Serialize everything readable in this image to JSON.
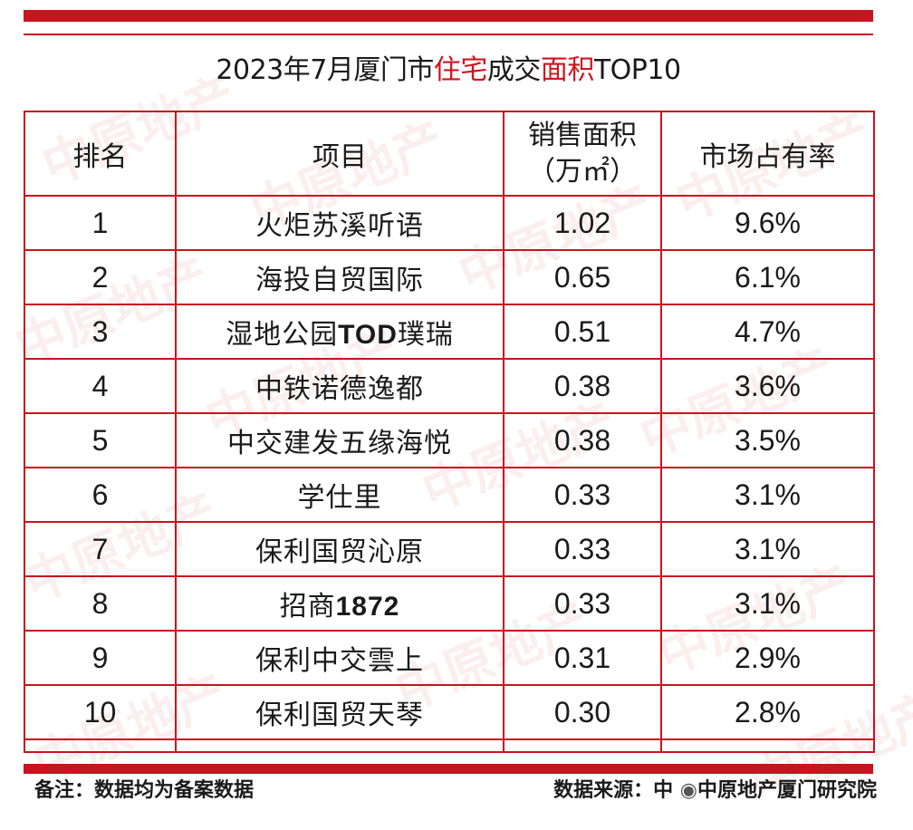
{
  "title": {
    "part1": "2023年7月厦门市",
    "hl1": "住宅",
    "part2": "成交",
    "hl2": "面积",
    "part3": "TOP10"
  },
  "columns": {
    "rank": "排名",
    "project": "项目",
    "area_line1": "销售面积",
    "area_line2": "（万㎡）",
    "share": "市场占有率"
  },
  "rows": [
    {
      "rank": "1",
      "project": "火炬苏溪听语",
      "area": "1.02",
      "share": "9.6%"
    },
    {
      "rank": "2",
      "project": "海投自贸国际",
      "area": "0.65",
      "share": "6.1%"
    },
    {
      "rank": "3",
      "project_a": "湿地公园",
      "project_b": "TOD",
      "project_c": "璞瑞",
      "area": "0.51",
      "share": "4.7%"
    },
    {
      "rank": "4",
      "project": "中铁诺德逸都",
      "area": "0.38",
      "share": "3.6%"
    },
    {
      "rank": "5",
      "project": "中交建发五缘海悦",
      "area": "0.38",
      "share": "3.5%"
    },
    {
      "rank": "6",
      "project": "学仕里",
      "area": "0.33",
      "share": "3.1%"
    },
    {
      "rank": "7",
      "project": "保利国贸沁原",
      "area": "0.33",
      "share": "3.1%"
    },
    {
      "rank": "8",
      "project_a": "招商",
      "project_b": "1872",
      "area": "0.33",
      "share": "3.1%"
    },
    {
      "rank": "9",
      "project": "保利中交雲上",
      "area": "0.31",
      "share": "2.9%"
    },
    {
      "rank": "10",
      "project": "保利国贸天琴",
      "area": "0.30",
      "share": "2.8%"
    }
  ],
  "footer": {
    "note": "备注：数据均为备案数据",
    "source_label": "数据来源：中",
    "source_name": "中原地产厦门研究院"
  },
  "watermark": "中原地产",
  "chart_data": {
    "type": "table",
    "title": "2023年7月厦门市住宅成交面积TOP10",
    "headers": [
      "排名",
      "项目",
      "销售面积（万㎡）",
      "市场占有率"
    ],
    "rows": [
      [
        "1",
        "火炬苏溪听语",
        1.02,
        "9.6%"
      ],
      [
        "2",
        "海投自贸国际",
        0.65,
        "6.1%"
      ],
      [
        "3",
        "湿地公园TOD璞瑞",
        0.51,
        "4.7%"
      ],
      [
        "4",
        "中铁诺德逸都",
        0.38,
        "3.6%"
      ],
      [
        "5",
        "中交建发五缘海悦",
        0.38,
        "3.5%"
      ],
      [
        "6",
        "学仕里",
        0.33,
        "3.1%"
      ],
      [
        "7",
        "保利国贸沁原",
        0.33,
        "3.1%"
      ],
      [
        "8",
        "招商1872",
        0.33,
        "3.1%"
      ],
      [
        "9",
        "保利中交雲上",
        0.31,
        "2.9%"
      ],
      [
        "10",
        "保利国贸天琴",
        0.3,
        "2.8%"
      ]
    ]
  },
  "colors": {
    "accent": "#c8141e",
    "highlight": "#d0141f"
  }
}
